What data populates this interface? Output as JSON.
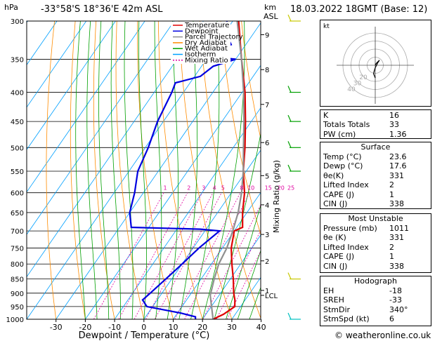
{
  "header": {
    "hpa_label": "hPa",
    "location": "-33°58'S  18°36'E  42m  ASL",
    "km_label": "km",
    "asl_label": "ASL",
    "datetime": "18.03.2022  18GMT  (Base: 12)"
  },
  "legend": [
    {
      "label": "Temperature",
      "color": "#e00000",
      "dash": ""
    },
    {
      "label": "Dewpoint",
      "color": "#0000e0",
      "dash": ""
    },
    {
      "label": "Parcel Trajectory",
      "color": "#909090",
      "dash": ""
    },
    {
      "label": "Dry Adiabat",
      "color": "#ff8c00",
      "dash": ""
    },
    {
      "label": "Wet Adiabat",
      "color": "#00a000",
      "dash": ""
    },
    {
      "label": "Isotherm",
      "color": "#00a0ff",
      "dash": ""
    },
    {
      "label": "Mixing Ratio",
      "color": "#e000a0",
      "dash": "2,2"
    }
  ],
  "chart_data": {
    "type": "line",
    "title": "",
    "xlabel": "Dewpoint / Temperature (°C)",
    "ylabel": "hPa",
    "secondary_ylabel": "Mixing Ratio (g/kg)",
    "pressure_levels": [
      300,
      350,
      400,
      450,
      500,
      550,
      600,
      650,
      700,
      750,
      800,
      850,
      900,
      950,
      1000
    ],
    "x_ticks": [
      -30,
      -20,
      -10,
      0,
      10,
      20,
      30,
      40
    ],
    "xlim": [
      -40,
      40
    ],
    "ylim": [
      1000,
      300
    ],
    "km_ticks": [
      {
        "km": "9",
        "p": 317
      },
      {
        "km": "8",
        "p": 365
      },
      {
        "km": "7",
        "p": 420
      },
      {
        "km": "6",
        "p": 490
      },
      {
        "km": "5",
        "p": 560
      },
      {
        "km": "4",
        "p": 630
      },
      {
        "km": "3",
        "p": 710
      },
      {
        "km": "2",
        "p": 790
      },
      {
        "km": "1",
        "p": 890
      },
      {
        "km": "LCL",
        "p": 908
      }
    ],
    "mixing_ratio_labels": [
      "1",
      "2",
      "3",
      "4",
      "5",
      "8",
      "10",
      "15",
      "20",
      "25"
    ],
    "series": [
      {
        "name": "Temperature",
        "color": "#e00000",
        "points": [
          [
            1000,
            23.6
          ],
          [
            980,
            26
          ],
          [
            950,
            28
          ],
          [
            925,
            26.5
          ],
          [
            900,
            24.5
          ],
          [
            850,
            21
          ],
          [
            800,
            17
          ],
          [
            750,
            13
          ],
          [
            700,
            10
          ],
          [
            690,
            12
          ],
          [
            650,
            8.5
          ],
          [
            600,
            4.5
          ],
          [
            550,
            -1
          ],
          [
            500,
            -6
          ],
          [
            450,
            -12
          ],
          [
            400,
            -19
          ],
          [
            350,
            -28
          ],
          [
            300,
            -38
          ]
        ]
      },
      {
        "name": "Dewpoint",
        "color": "#0000e0",
        "points": [
          [
            1000,
            17.6
          ],
          [
            990,
            17
          ],
          [
            975,
            11
          ],
          [
            950,
            -2
          ],
          [
            925,
            -5
          ],
          [
            900,
            -4
          ],
          [
            850,
            -2
          ],
          [
            800,
            0
          ],
          [
            750,
            2
          ],
          [
            700,
            5
          ],
          [
            695,
            -2
          ],
          [
            690,
            -26
          ],
          [
            650,
            -30
          ],
          [
            600,
            -33
          ],
          [
            550,
            -37
          ],
          [
            500,
            -39
          ],
          [
            450,
            -42
          ],
          [
            400,
            -44
          ],
          [
            385,
            -45
          ],
          [
            375,
            -38
          ],
          [
            360,
            -36
          ],
          [
            350,
            -30
          ],
          [
            345,
            -44
          ],
          [
            330,
            -35
          ],
          [
            320,
            -38
          ],
          [
            300,
            -42
          ]
        ]
      },
      {
        "name": "Parcel Trajectory",
        "color": "#909090",
        "points": [
          [
            1000,
            23.6
          ],
          [
            908,
            17
          ],
          [
            850,
            14.5
          ],
          [
            800,
            12.5
          ],
          [
            750,
            11.5
          ],
          [
            700,
            9.5
          ],
          [
            650,
            7
          ],
          [
            600,
            3.5
          ],
          [
            550,
            -1
          ],
          [
            500,
            -6.5
          ],
          [
            450,
            -12.5
          ],
          [
            400,
            -19.5
          ],
          [
            350,
            -28
          ],
          [
            300,
            -38.5
          ]
        ]
      }
    ]
  },
  "hodograph": {
    "unit": "kt",
    "ring_labels": [
      "10",
      "20",
      "30",
      "40"
    ],
    "points": [
      [
        0,
        0
      ],
      [
        1,
        -2
      ],
      [
        3,
        -4
      ],
      [
        5,
        -6
      ],
      [
        3,
        -3
      ],
      [
        0,
        3
      ],
      [
        -1,
        6
      ],
      [
        -2,
        10
      ],
      [
        0,
        15
      ]
    ]
  },
  "indices": [
    {
      "label": "K",
      "value": "16"
    },
    {
      "label": "Totals Totals",
      "value": "33"
    },
    {
      "label": "PW (cm)",
      "value": "1.36"
    }
  ],
  "surface": {
    "title": "Surface",
    "rows": [
      {
        "label": "Temp (°C)",
        "value": "23.6"
      },
      {
        "label": "Dewp (°C)",
        "value": "17.6"
      },
      {
        "label": "θe(K)",
        "value": "331"
      },
      {
        "label": "Lifted Index",
        "value": "2"
      },
      {
        "label": "CAPE (J)",
        "value": "1"
      },
      {
        "label": "CIN (J)",
        "value": "338"
      }
    ]
  },
  "most_unstable": {
    "title": "Most Unstable",
    "rows": [
      {
        "label": "Pressure (mb)",
        "value": "1011"
      },
      {
        "label": "θe (K)",
        "value": "331"
      },
      {
        "label": "Lifted Index",
        "value": "2"
      },
      {
        "label": "CAPE (J)",
        "value": "1"
      },
      {
        "label": "CIN (J)",
        "value": "338"
      }
    ]
  },
  "hodograph_table": {
    "title": "Hodograph",
    "rows": [
      {
        "label": "EH",
        "value": "-18"
      },
      {
        "label": "SREH",
        "value": "-33"
      },
      {
        "label": "StmDir",
        "value": "340°"
      },
      {
        "label": "StmSpd (kt)",
        "value": "6"
      }
    ]
  },
  "footer": {
    "copyright": "© weatheronline.co.uk"
  }
}
